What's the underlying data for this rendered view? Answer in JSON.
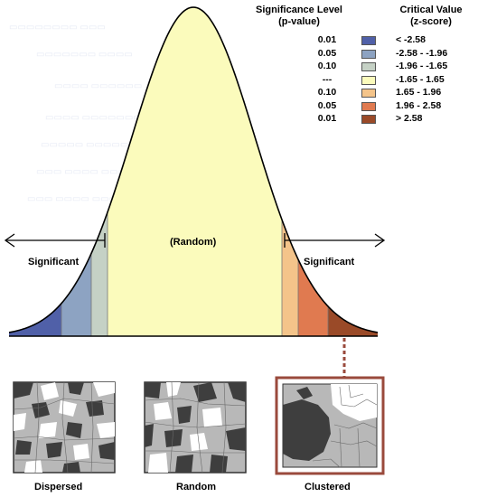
{
  "legend": {
    "sig_header_line1": "Significance Level",
    "sig_header_line2": "(p-value)",
    "crit_header_line1": "Critical Value",
    "crit_header_line2": "(z-score)",
    "rows": [
      {
        "p": "0.01",
        "z": "< -2.58",
        "color": "#5060a8"
      },
      {
        "p": "0.05",
        "z": "-2.58 - -1.96",
        "color": "#8da3c2"
      },
      {
        "p": "0.10",
        "z": "-1.96 - -1.65",
        "color": "#c5d1c5"
      },
      {
        "p": "---",
        "z": "-1.65 - 1.65",
        "color": "#fbfbbc"
      },
      {
        "p": "0.10",
        "z": "1.65 - 1.96",
        "color": "#f4c48a"
      },
      {
        "p": "0.05",
        "z": "1.96 - 2.58",
        "color": "#e07a50"
      },
      {
        "p": "0.01",
        "z": "> 2.58",
        "color": "#9a4a28"
      }
    ]
  },
  "curve": {
    "random_label": "(Random)",
    "left_significant": "Significant",
    "right_significant": "Significant"
  },
  "maps": {
    "dispersed": "Dispersed",
    "random": "Random",
    "clustered": "Clustered"
  },
  "colors": {
    "map_dark": "#3e3e3e",
    "map_gray": "#b8b8b8",
    "map_white": "#ffffff",
    "cluster_frame": "#9a4a3c"
  }
}
